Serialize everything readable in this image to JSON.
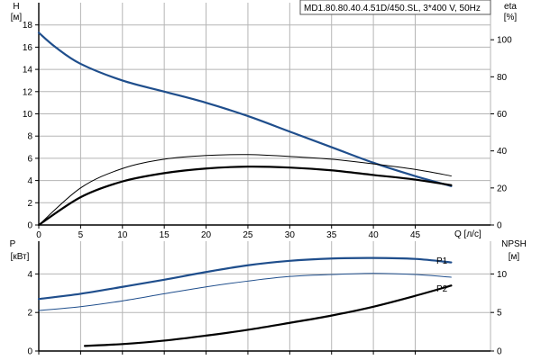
{
  "header": {
    "model_label": "MD1.80.80.40.4.51D/450.SL, 3*400 V, 50Hz"
  },
  "colors": {
    "curve_blue": "#1f4e8c",
    "curve_black": "#000000",
    "grid": "#b5b5b5",
    "background": "#ffffff"
  },
  "chart_data": [
    {
      "type": "line",
      "ylabel_left": "H",
      "ylabel_left_unit": "[м]",
      "ylabel_right": "eta",
      "ylabel_right_unit": "[%]",
      "xlabel": "Q [л/с]",
      "xlim": [
        0,
        54
      ],
      "ylim_left": [
        0,
        20
      ],
      "ylim_right": [
        0,
        120
      ],
      "x_ticks": [
        0,
        5,
        10,
        15,
        20,
        25,
        30,
        35,
        40,
        45
      ],
      "x_tick_labels": [
        "0",
        "5",
        "10",
        "15",
        "20",
        "25",
        "30",
        "35",
        "40",
        "45"
      ],
      "y_ticks_left": [
        0,
        2,
        4,
        6,
        8,
        10,
        12,
        14,
        16,
        18
      ],
      "y_tick_labels_left": [
        "0",
        "2",
        "4",
        "6",
        "8",
        "10",
        "12",
        "14",
        "16",
        "18"
      ],
      "y_ticks_right": [
        0,
        20,
        40,
        60,
        80,
        100
      ],
      "y_tick_labels_right": [
        "0",
        "20",
        "40",
        "60",
        "80",
        "100"
      ],
      "series": [
        {
          "axis": "left",
          "color": "#1f4e8c",
          "width": 2.2,
          "x": [
            0,
            2,
            5,
            10,
            15,
            20,
            25,
            30,
            35,
            40,
            45,
            49.3
          ],
          "y": [
            17.3,
            16.0,
            14.5,
            13.0,
            12.0,
            11.0,
            9.8,
            8.4,
            7.0,
            5.6,
            4.4,
            3.5
          ]
        },
        {
          "axis": "right",
          "color": "#000000",
          "width": 1,
          "x": [
            0,
            5,
            10,
            15,
            20,
            25,
            30,
            35,
            40,
            45,
            49.3
          ],
          "y": [
            0,
            20,
            30.5,
            35.5,
            37.5,
            38,
            37,
            35.5,
            33,
            30,
            26.5
          ]
        },
        {
          "axis": "right",
          "color": "#000000",
          "width": 2.2,
          "x": [
            0,
            5,
            10,
            15,
            20,
            25,
            30,
            35,
            40,
            45,
            49.3
          ],
          "y": [
            0,
            15,
            23.5,
            28,
            30.5,
            31.5,
            31,
            29.5,
            27,
            24.5,
            21.5
          ]
        }
      ]
    },
    {
      "type": "line",
      "ylabel_left": "P",
      "ylabel_left_unit": "[кВт]",
      "ylabel_right": "NPSH",
      "ylabel_right_unit": "[м]",
      "xlim": [
        0,
        54
      ],
      "ylim_left": [
        0,
        5.7
      ],
      "ylim_right": [
        0,
        14.25
      ],
      "x_ticks": [
        0,
        5,
        10,
        15,
        20,
        25,
        30,
        35,
        40,
        45
      ],
      "y_ticks_left": [
        0,
        2,
        4
      ],
      "y_tick_labels_left": [
        "0",
        "2",
        "4"
      ],
      "y_ticks_right": [
        0,
        5,
        10
      ],
      "y_tick_labels_right": [
        "0",
        "5",
        "10"
      ],
      "series": [
        {
          "name": "P1",
          "axis": "left",
          "color": "#1f4e8c",
          "width": 2.2,
          "x": [
            0,
            5,
            10,
            15,
            20,
            25,
            30,
            35,
            40,
            45,
            49.3
          ],
          "y": [
            2.7,
            2.97,
            3.33,
            3.7,
            4.1,
            4.45,
            4.68,
            4.8,
            4.83,
            4.78,
            4.6
          ]
        },
        {
          "name": "P2",
          "axis": "left",
          "color": "#1f4e8c",
          "width": 1,
          "x": [
            0,
            5,
            10,
            15,
            20,
            25,
            30,
            35,
            40,
            45,
            49.3
          ],
          "y": [
            2.1,
            2.3,
            2.6,
            2.97,
            3.33,
            3.63,
            3.87,
            3.97,
            4.03,
            3.97,
            3.83
          ]
        },
        {
          "axis": "right",
          "color": "#000000",
          "width": 2.2,
          "x": [
            5.5,
            10,
            15,
            20,
            25,
            30,
            35,
            40,
            45,
            49.3
          ],
          "y": [
            0.66,
            0.9,
            1.35,
            2.0,
            2.75,
            3.65,
            4.6,
            5.75,
            7.16,
            8.49
          ]
        }
      ]
    }
  ]
}
